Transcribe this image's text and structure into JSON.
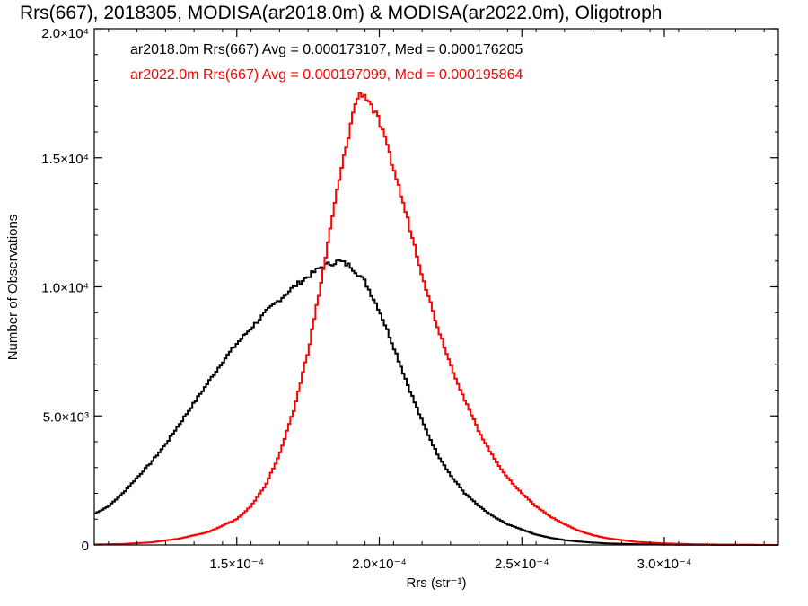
{
  "chart_data": {
    "type": "histogram",
    "title": "Rrs(667), 2018305, MODISA(ar2018.0m) & MODISA(ar2022.0m), Oligotroph",
    "xlabel": "Rrs (str⁻¹)",
    "ylabel": "Number of Observations",
    "xlim": [
      0.0001,
      0.00034
    ],
    "ylim": [
      0,
      20000
    ],
    "x_ticks": [
      {
        "value": 0.00015,
        "label": "1.5×10⁻⁴"
      },
      {
        "value": 0.0002,
        "label": "2.0×10⁻⁴"
      },
      {
        "value": 0.00025,
        "label": "2.5×10⁻⁴"
      },
      {
        "value": 0.0003,
        "label": "3.0×10⁻⁴"
      }
    ],
    "y_ticks": [
      {
        "value": 0,
        "label": "0"
      },
      {
        "value": 5000,
        "label": "5.0×10³"
      },
      {
        "value": 10000,
        "label": "1.0×10⁴"
      },
      {
        "value": 15000,
        "label": "1.5×10⁴"
      },
      {
        "value": 20000,
        "label": "2.0×10⁴"
      }
    ],
    "legend": [
      {
        "text": "ar2018.0m Rrs(667) Avg = 0.000173107, Med = 0.000176205",
        "color": "#000000"
      },
      {
        "text": "ar2022.0m Rrs(667) Avg = 0.000197099, Med = 0.000195864",
        "color": "#ff0000"
      }
    ],
    "legend_placement": "top-left",
    "series": [
      {
        "color": "#000000",
        "points": [
          [
            0.0001,
            1200
          ],
          [
            0.000105,
            1500
          ],
          [
            0.00011,
            2000
          ],
          [
            0.000115,
            2600
          ],
          [
            0.00012,
            3200
          ],
          [
            0.000125,
            3900
          ],
          [
            0.00013,
            4700
          ],
          [
            0.000135,
            5500
          ],
          [
            0.00014,
            6300
          ],
          [
            0.000145,
            7100
          ],
          [
            0.00015,
            7800
          ],
          [
            0.000155,
            8400
          ],
          [
            0.00016,
            9000
          ],
          [
            0.000165,
            9500
          ],
          [
            0.00017,
            10000
          ],
          [
            0.000175,
            10400
          ],
          [
            0.00018,
            10800
          ],
          [
            0.000183,
            10900
          ],
          [
            0.000186,
            11000
          ],
          [
            0.00019,
            10800
          ],
          [
            0.000195,
            10200
          ],
          [
            0.0002,
            9100
          ],
          [
            0.000205,
            7700
          ],
          [
            0.00021,
            6200
          ],
          [
            0.000215,
            4800
          ],
          [
            0.00022,
            3600
          ],
          [
            0.000225,
            2700
          ],
          [
            0.00023,
            2000
          ],
          [
            0.000235,
            1500
          ],
          [
            0.00024,
            1100
          ],
          [
            0.000245,
            800
          ],
          [
            0.00025,
            600
          ],
          [
            0.000255,
            400
          ],
          [
            0.00026,
            280
          ],
          [
            0.000265,
            190
          ],
          [
            0.00027,
            130
          ],
          [
            0.000275,
            90
          ],
          [
            0.00028,
            60
          ],
          [
            0.00029,
            30
          ],
          [
            0.0003,
            15
          ],
          [
            0.00031,
            8
          ],
          [
            0.00032,
            4
          ],
          [
            0.00034,
            0
          ]
        ]
      },
      {
        "color": "#ff0000",
        "points": [
          [
            0.0001,
            20
          ],
          [
            0.00011,
            40
          ],
          [
            0.00012,
            100
          ],
          [
            0.00013,
            250
          ],
          [
            0.00014,
            500
          ],
          [
            0.00015,
            1000
          ],
          [
            0.000155,
            1500
          ],
          [
            0.00016,
            2300
          ],
          [
            0.000165,
            3500
          ],
          [
            0.00017,
            5200
          ],
          [
            0.000175,
            7500
          ],
          [
            0.00018,
            10400
          ],
          [
            0.000185,
            13600
          ],
          [
            0.00019,
            16300
          ],
          [
            0.000192,
            17300
          ],
          [
            0.000194,
            17500
          ],
          [
            0.000196,
            17300
          ],
          [
            0.0002,
            16400
          ],
          [
            0.000205,
            14600
          ],
          [
            0.00021,
            12600
          ],
          [
            0.000215,
            10500
          ],
          [
            0.00022,
            8600
          ],
          [
            0.000225,
            7000
          ],
          [
            0.00023,
            5600
          ],
          [
            0.000235,
            4400
          ],
          [
            0.00024,
            3400
          ],
          [
            0.000245,
            2600
          ],
          [
            0.00025,
            2000
          ],
          [
            0.000255,
            1500
          ],
          [
            0.00026,
            1100
          ],
          [
            0.000265,
            800
          ],
          [
            0.00027,
            550
          ],
          [
            0.000275,
            380
          ],
          [
            0.00028,
            260
          ],
          [
            0.00029,
            120
          ],
          [
            0.0003,
            60
          ],
          [
            0.00031,
            30
          ],
          [
            0.00032,
            15
          ],
          [
            0.00034,
            0
          ]
        ]
      }
    ]
  }
}
